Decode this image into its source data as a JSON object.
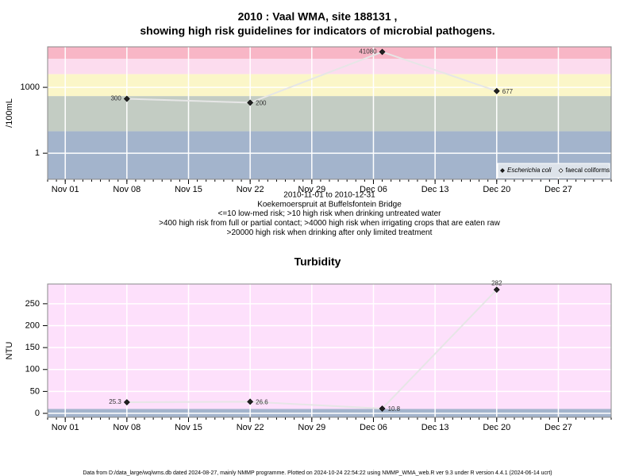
{
  "chart_data": [
    {
      "type": "line",
      "log": true,
      "grid": true,
      "legend": "bottom-right",
      "title": "2010 : Vaal WMA, site 188131 ,",
      "subtitle": "showing high risk guidelines for indicators of microbial pathogens.",
      "ylabel": "/100mL",
      "notes": [
        "2010-11-01 to 2010-12-31",
        "Koekemoerspruit at Buffelsfontein Bridge",
        "<=10 low-med risk; >10 high risk when drinking untreated water",
        ">400 high risk from full or partial contact; >4000 high risk when irrigating crops that are eaten raw",
        ">20000 high risk when drinking after only limited treatment"
      ],
      "x": [
        "Nov 08",
        "Nov 22",
        "Dec 07",
        "Dec 20"
      ],
      "xlim": [
        "Oct 30",
        "Jan 02"
      ],
      "xticks": [
        "Nov 01",
        "Nov 08",
        "Nov 15",
        "Nov 22",
        "Nov 29",
        "Dec 06",
        "Dec 13",
        "Dec 20",
        "Dec 27"
      ],
      "ylim": [
        0.065,
        70000
      ],
      "yticks": [
        1,
        1000
      ],
      "bands": [
        {
          "from": 0.065,
          "to": 10,
          "color": "#a3b4cc"
        },
        {
          "from": 10,
          "to": 400,
          "color": "#c3ccc3"
        },
        {
          "from": 400,
          "to": 4000,
          "color": "#fbf6c8"
        },
        {
          "from": 4000,
          "to": 20000,
          "color": "#fcdcee"
        },
        {
          "from": 20000,
          "to": 70000,
          "color": "#f8b6c6"
        }
      ],
      "series": [
        {
          "name": "Escherichia coli",
          "color": "#222222",
          "values": [
            300,
            200,
            41080,
            677
          ]
        },
        {
          "name": "faecal coliforms",
          "color": "#ffffff",
          "values": [
            null,
            null,
            null,
            null
          ]
        }
      ]
    },
    {
      "type": "line",
      "log": false,
      "grid": true,
      "title": "Turbidity",
      "ylabel": "NTU",
      "x": [
        "Nov 08",
        "Nov 22",
        "Dec 07",
        "Dec 20"
      ],
      "xlim": [
        "Oct 30",
        "Jan 02"
      ],
      "xticks": [
        "Nov 01",
        "Nov 08",
        "Nov 15",
        "Nov 22",
        "Nov 29",
        "Dec 06",
        "Dec 13",
        "Dec 20",
        "Dec 27"
      ],
      "ylim": [
        -9,
        295
      ],
      "yticks": [
        0,
        50,
        100,
        150,
        200,
        250
      ],
      "bands": [
        {
          "from": -9,
          "to": 10,
          "color": "#a3b4cc"
        },
        {
          "from": 10,
          "to": 295,
          "color": "#fde0fb"
        }
      ],
      "series": [
        {
          "name": "Turbidity",
          "color": "#222222",
          "values": [
            25.3,
            26.6,
            10.8,
            282
          ]
        }
      ]
    }
  ],
  "footer": "Data from D:/data_large/wq/wms.db dated 2024-08-27, mainly NMMP programme. Plotted on 2024-10-24 22:54:22 using NMMP_WMA_web.R ver 9.3 under R version 4.4.1 (2024-06-14 ucrt)"
}
